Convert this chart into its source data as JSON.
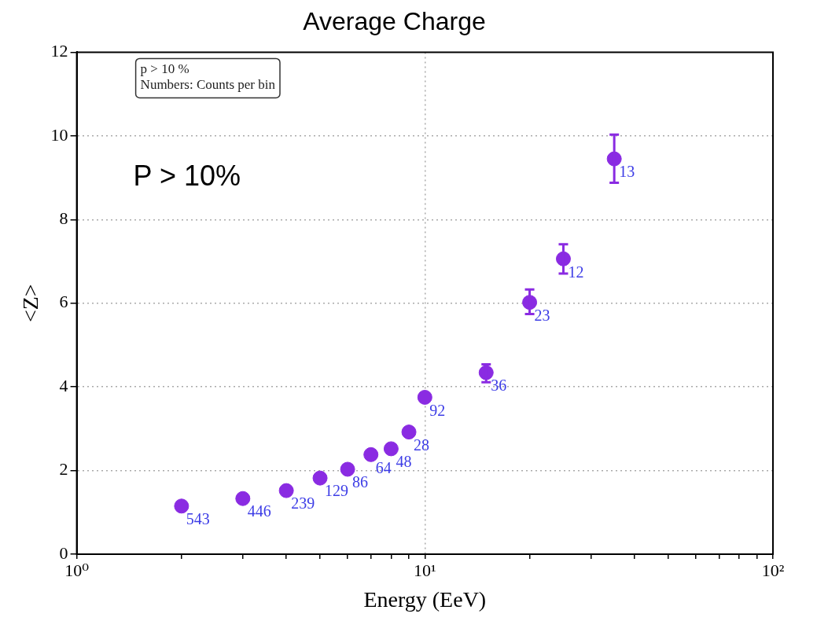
{
  "chart_data": {
    "type": "scatter",
    "title": "Average Charge",
    "xlabel": "Energy (EeV)",
    "ylabel": "<Z>",
    "x": [
      2,
      3,
      4,
      5,
      6,
      7,
      8,
      9,
      10,
      15,
      20,
      25,
      35
    ],
    "series": [
      {
        "color": "#8a2be2",
        "values": [
          1.15,
          1.33,
          1.52,
          1.82,
          2.03,
          2.38,
          2.52,
          2.92,
          3.75,
          4.34,
          6.02,
          7.06,
          9.45
        ],
        "errors": [
          null,
          null,
          null,
          null,
          null,
          null,
          null,
          null,
          null,
          [
            4.11,
            4.54
          ],
          [
            5.74,
            6.33
          ],
          [
            6.71,
            7.41
          ],
          [
            8.88,
            10.03
          ]
        ]
      }
    ],
    "log": "x",
    "xlim": [
      1,
      100
    ],
    "xticks": [
      {
        "value": 1,
        "label": "10⁰"
      },
      {
        "value": 2,
        "label": null
      },
      {
        "value": 3,
        "label": null
      },
      {
        "value": 4,
        "label": null
      },
      {
        "value": 5,
        "label": null
      },
      {
        "value": 6,
        "label": null
      },
      {
        "value": 7,
        "label": null
      },
      {
        "value": 8,
        "label": null
      },
      {
        "value": 9,
        "label": null
      },
      {
        "value": 10,
        "label": "10¹"
      },
      {
        "value": 20,
        "label": null
      },
      {
        "value": 30,
        "label": null
      },
      {
        "value": 40,
        "label": null
      },
      {
        "value": 50,
        "label": null
      },
      {
        "value": 60,
        "label": null
      },
      {
        "value": 70,
        "label": null
      },
      {
        "value": 80,
        "label": null
      },
      {
        "value": 90,
        "label": null
      },
      {
        "value": 100,
        "label": "10²"
      }
    ],
    "ylim": [
      0,
      12
    ],
    "yticks": [
      0,
      2,
      4,
      6,
      8,
      10,
      12
    ],
    "grid": true,
    "legend": false,
    "marker": "circle",
    "annotations": [
      "p > 10 %",
      "Numbers: Counts per bin",
      "P > 10%",
      {
        "text": "543",
        "x": 2,
        "y": 1.15
      },
      {
        "text": "446",
        "x": 3,
        "y": 1.33
      },
      {
        "text": "239",
        "x": 4,
        "y": 1.52
      },
      {
        "text": "129",
        "x": 5,
        "y": 1.82
      },
      {
        "text": "86",
        "x": 6,
        "y": 2.03
      },
      {
        "text": "64",
        "x": 7,
        "y": 2.38
      },
      {
        "text": "48",
        "x": 8,
        "y": 2.52
      },
      {
        "text": "28",
        "x": 9,
        "y": 2.92
      },
      {
        "text": "92",
        "x": 10,
        "y": 3.75
      },
      {
        "text": "36",
        "x": 15,
        "y": 4.34
      },
      {
        "text": "23",
        "x": 20,
        "y": 6.02
      },
      {
        "text": "12",
        "x": 25,
        "y": 7.06
      },
      {
        "text": "13",
        "x": 35,
        "y": 9.45
      }
    ]
  }
}
